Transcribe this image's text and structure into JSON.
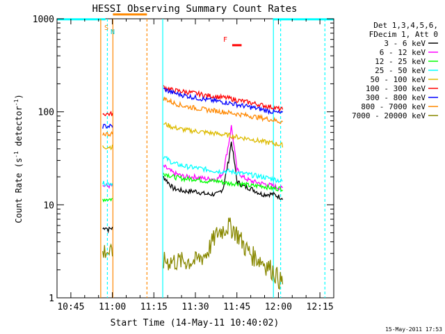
{
  "chart_data": {
    "type": "line",
    "title": "HESSI Observing Summary Count Rates",
    "xlabel": "Start Time (14-May-11 10:40:02)",
    "ylabel_main": "Count Rate (s",
    "ylabel_sup1": "-1",
    "ylabel_mid": " detector",
    "ylabel_sup2": "-1",
    "ylabel_end": ")",
    "x_ticks": [
      "10:45",
      "11:00",
      "11:15",
      "11:30",
      "11:45",
      "12:00",
      "12:15"
    ],
    "y_ticks": [
      "1",
      "10",
      "100",
      "1000"
    ],
    "y_scale": "log",
    "ylim": [
      1,
      1000
    ],
    "xlim_minutes": [
      40,
      140
    ],
    "legend_header": [
      "Det 1,3,4,5,6,",
      "FDecim 1, Att 0"
    ],
    "footer_date": "15-May-2011 17:53",
    "flags": {
      "S": "S",
      "N": "N",
      "F": "F"
    },
    "series": [
      {
        "name": "3 - 6 keV",
        "color": "#000000",
        "x": [
          56.5,
          57.5,
          58.5,
          59.5,
          78.5,
          82,
          86,
          90,
          94,
          98,
          100,
          102,
          103,
          104,
          105,
          107,
          110,
          114,
          118,
          121
        ],
        "y": [
          5.5,
          5.8,
          5.4,
          5.6,
          20,
          15,
          14,
          14,
          13,
          13,
          15,
          30,
          48,
          30,
          18,
          16,
          15,
          13,
          13,
          12
        ]
      },
      {
        "name": "6 - 12 keV",
        "color": "#ff00ff",
        "x": [
          56.5,
          57.5,
          58.5,
          59.5,
          78.5,
          82,
          86,
          90,
          94,
          98,
          100,
          102,
          103,
          104,
          105,
          107,
          110,
          114,
          118,
          121
        ],
        "y": [
          16,
          16,
          16,
          16,
          26,
          22,
          20,
          20,
          19,
          19,
          22,
          45,
          70,
          42,
          24,
          20,
          18,
          17,
          16,
          15
        ]
      },
      {
        "name": "12 - 25 keV",
        "color": "#00ff00",
        "x": [
          56.5,
          57.5,
          58.5,
          59.5,
          78.5,
          82,
          86,
          90,
          94,
          98,
          102,
          106,
          110,
          114,
          118,
          121
        ],
        "y": [
          11.5,
          11.5,
          11.5,
          11.5,
          22,
          20,
          19,
          19,
          18,
          18,
          17,
          17,
          16,
          16,
          15,
          15
        ]
      },
      {
        "name": "25 - 50 keV",
        "color": "#00ffff",
        "x": [
          56.5,
          57.5,
          58.5,
          59.5,
          78.5,
          82,
          86,
          90,
          94,
          98,
          102,
          106,
          110,
          114,
          118,
          121
        ],
        "y": [
          17,
          17,
          17,
          17,
          33,
          28,
          26,
          25,
          24,
          23,
          23,
          22,
          21,
          20,
          19,
          18
        ]
      },
      {
        "name": "50 - 100 keV",
        "color": "#ddbb00",
        "x": [
          56.5,
          57.5,
          58.5,
          59.5,
          78.5,
          82,
          86,
          90,
          94,
          98,
          102,
          106,
          110,
          114,
          118,
          121
        ],
        "y": [
          42,
          42,
          42,
          42,
          75,
          68,
          64,
          62,
          60,
          58,
          56,
          53,
          51,
          48,
          46,
          44
        ]
      },
      {
        "name": "100 - 300 keV",
        "color": "#ff0000",
        "x": [
          56.5,
          57.5,
          58.5,
          59.5,
          78.5,
          82,
          86,
          90,
          94,
          98,
          102,
          106,
          110,
          114,
          118,
          121
        ],
        "y": [
          95,
          95,
          95,
          95,
          185,
          170,
          165,
          158,
          150,
          145,
          140,
          132,
          125,
          118,
          112,
          106
        ]
      },
      {
        "name": "300 - 800 keV",
        "color": "#0000ff",
        "x": [
          56.5,
          57.5,
          58.5,
          59.5,
          78.5,
          82,
          86,
          90,
          94,
          98,
          102,
          106,
          110,
          114,
          118,
          121
        ],
        "y": [
          70,
          70,
          70,
          70,
          175,
          160,
          150,
          142,
          135,
          130,
          125,
          118,
          112,
          106,
          100,
          96
        ]
      },
      {
        "name": "800 - 7000 keV",
        "color": "#ff8800",
        "x": [
          56.5,
          57.5,
          58.5,
          59.5,
          78.5,
          82,
          86,
          90,
          94,
          98,
          102,
          106,
          110,
          114,
          118,
          121
        ],
        "y": [
          58,
          58,
          58,
          58,
          140,
          125,
          115,
          110,
          105,
          102,
          98,
          94,
          90,
          86,
          82,
          78
        ]
      },
      {
        "name": "7000 - 20000 keV",
        "color": "#888800",
        "x": [
          56.5,
          57.5,
          58.5,
          59.5,
          78.5,
          82,
          86,
          90,
          94,
          96,
          98,
          100,
          102,
          104,
          106,
          108,
          110,
          114,
          118,
          121
        ],
        "y": [
          3,
          3.3,
          3.1,
          3,
          2.5,
          2.5,
          2.5,
          2.5,
          3,
          4,
          5,
          5.5,
          6,
          5.5,
          4.5,
          3.5,
          3,
          2.5,
          2,
          1.5
        ]
      }
    ]
  }
}
